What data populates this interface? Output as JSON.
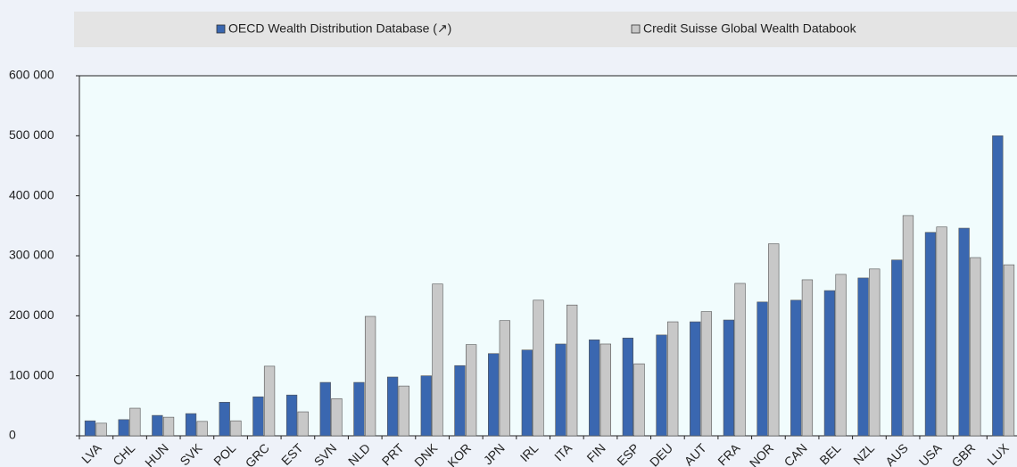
{
  "chart_data": {
    "type": "bar",
    "categories": [
      "LVA",
      "CHL",
      "HUN",
      "SVK",
      "POL",
      "GRC",
      "EST",
      "SVN",
      "NLD",
      "PRT",
      "DNK",
      "KOR",
      "JPN",
      "IRL",
      "ITA",
      "FIN",
      "ESP",
      "DEU",
      "AUT",
      "FRA",
      "NOR",
      "CAN",
      "BEL",
      "NZL",
      "AUS",
      "USA",
      "GBR",
      "LUX"
    ],
    "series": [
      {
        "name": "OECD Wealth Distribution Database (↗)",
        "color": "#3a67b0",
        "values": [
          25000,
          27000,
          34000,
          37000,
          56000,
          65000,
          68000,
          89000,
          89000,
          98000,
          100000,
          117000,
          137000,
          143000,
          153000,
          160000,
          163000,
          168000,
          190000,
          193000,
          223000,
          226000,
          242000,
          263000,
          293000,
          339000,
          346000,
          500000
        ]
      },
      {
        "name": "Credit Suisse Global Wealth Databook",
        "color": "#c8c8c8",
        "values": [
          21000,
          46000,
          31000,
          24000,
          25000,
          116000,
          40000,
          62000,
          199000,
          83000,
          253000,
          152000,
          192000,
          226000,
          218000,
          153000,
          120000,
          190000,
          207000,
          254000,
          320000,
          260000,
          269000,
          278000,
          367000,
          348000,
          297000,
          285000
        ]
      }
    ],
    "ylim": [
      0,
      600000
    ],
    "yticks": [
      {
        "value": 0,
        "label": "0"
      },
      {
        "value": 100000,
        "label": "100 000"
      },
      {
        "value": 200000,
        "label": "200 000"
      },
      {
        "value": 300000,
        "label": "300 000"
      },
      {
        "value": 400000,
        "label": "400 000"
      },
      {
        "value": 500000,
        "label": "500 000"
      },
      {
        "value": 600000,
        "label": "600 000"
      }
    ],
    "legend": "top"
  }
}
